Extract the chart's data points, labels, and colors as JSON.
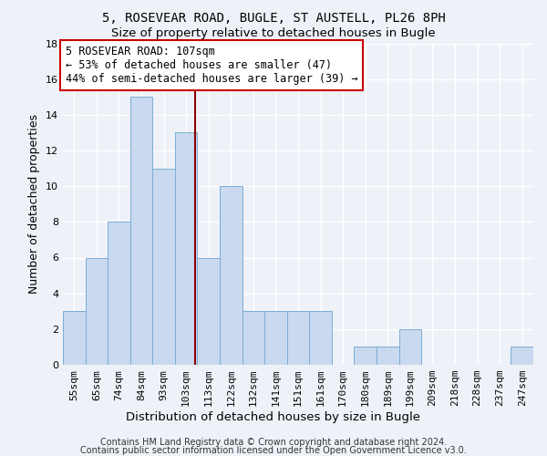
{
  "title_line1": "5, ROSEVEAR ROAD, BUGLE, ST AUSTELL, PL26 8PH",
  "title_line2": "Size of property relative to detached houses in Bugle",
  "xlabel": "Distribution of detached houses by size in Bugle",
  "ylabel": "Number of detached properties",
  "categories": [
    "55sqm",
    "65sqm",
    "74sqm",
    "84sqm",
    "93sqm",
    "103sqm",
    "113sqm",
    "122sqm",
    "132sqm",
    "141sqm",
    "151sqm",
    "161sqm",
    "170sqm",
    "180sqm",
    "189sqm",
    "199sqm",
    "209sqm",
    "218sqm",
    "228sqm",
    "237sqm",
    "247sqm"
  ],
  "values": [
    3,
    6,
    8,
    15,
    11,
    13,
    6,
    10,
    3,
    3,
    3,
    3,
    0,
    1,
    1,
    2,
    0,
    0,
    0,
    0,
    1
  ],
  "bar_color": "#c9d9ef",
  "bar_edge_color": "#7aadd4",
  "highlight_line_color": "#8b0000",
  "highlight_bar_index": 5,
  "property_sqm": 107,
  "ylim": [
    0,
    18
  ],
  "yticks": [
    0,
    2,
    4,
    6,
    8,
    10,
    12,
    14,
    16,
    18
  ],
  "annotation_box_text": "5 ROSEVEAR ROAD: 107sqm\n← 53% of detached houses are smaller (47)\n44% of semi-detached houses are larger (39) →",
  "annotation_box_color": "#ffffff",
  "annotation_box_edge_color": "#cc0000",
  "footer_line1": "Contains HM Land Registry data © Crown copyright and database right 2024.",
  "footer_line2": "Contains public sector information licensed under the Open Government Licence v3.0.",
  "background_color": "#eef2f8",
  "grid_color": "#ffffff",
  "title1_fontsize": 10,
  "title2_fontsize": 9.5,
  "xlabel_fontsize": 9.5,
  "ylabel_fontsize": 9,
  "tick_fontsize": 8,
  "annot_fontsize": 8.5,
  "footer_fontsize": 7
}
